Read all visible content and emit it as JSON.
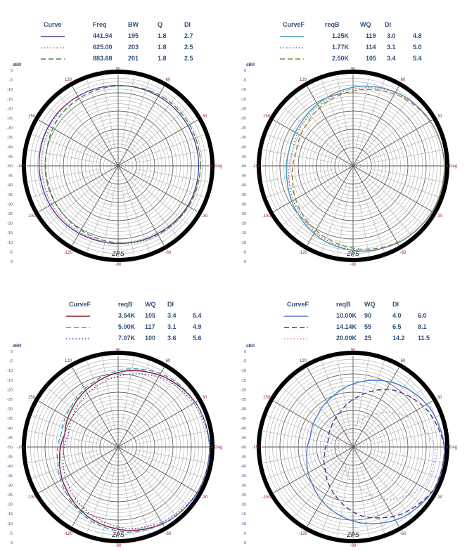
{
  "chart_data": [
    {
      "type": "polar",
      "radial_label": "dBR",
      "radial_ticks": [
        "0",
        "-5",
        "-10",
        "-15",
        "-20",
        "-25",
        "-30",
        "-35",
        "-40",
        "-45",
        "-50",
        "-45",
        "-40",
        "-35",
        "-30",
        "-25",
        "-20",
        "-15",
        "-10",
        "-5",
        "0"
      ],
      "angle_labels": [
        "0 Deg",
        "30",
        "60",
        "90",
        "120",
        "150",
        "-180",
        "-150",
        "-120",
        "-90",
        "-60",
        "-30"
      ],
      "signature": "ZPS",
      "legend_headers": [
        "Curve",
        "Freq",
        "BW",
        "Q",
        "DI"
      ],
      "series": [
        {
          "values": [
            "441.94",
            "195",
            "1.8",
            "2.7"
          ],
          "color": "#4a3a9a",
          "dash": "solid",
          "r": [
            -6,
            -6,
            -6,
            -6,
            -6,
            -6,
            -6.5,
            -7,
            -7,
            -7.5,
            -7.5,
            -7,
            -6,
            -6
          ]
        },
        {
          "values": [
            "625.00",
            "203",
            "1.8",
            "2.5"
          ],
          "color": "#e05a7a",
          "dash": "dot",
          "r": [
            -5,
            -5,
            -5,
            -6,
            -6,
            -6.5,
            -8,
            -8.5,
            -8,
            -8,
            -7,
            -6,
            -5.5,
            -5
          ]
        },
        {
          "values": [
            "883.88",
            "201",
            "1.8",
            "2.5"
          ],
          "color": "#3a8a3a",
          "dash": "dash",
          "r": [
            -5,
            -5,
            -5,
            -6,
            -7,
            -8,
            -10,
            -10.5,
            -10,
            -9,
            -7.5,
            -6.5,
            -5.5,
            -5
          ]
        }
      ]
    },
    {
      "type": "polar",
      "radial_label": "dBR",
      "radial_ticks": [
        "0",
        "-5",
        "-10",
        "-15",
        "-20",
        "-25",
        "-30",
        "-35",
        "-40",
        "-45",
        "-50",
        "-45",
        "-40",
        "-35",
        "-30",
        "-25",
        "-20",
        "-15",
        "-10",
        "-5",
        "0"
      ],
      "angle_labels": [
        "0 Deg",
        "30",
        "60",
        "90",
        "120",
        "150",
        "-180",
        "-150",
        "-120",
        "-90",
        "-60",
        "-30"
      ],
      "signature": "ZPS",
      "legend_headers": [
        "CurveF",
        "reqB",
        "WQ",
        "DI"
      ],
      "series": [
        {
          "values": [
            "1.25K",
            "119",
            "3.0",
            "4.8"
          ],
          "color": "#3a9ab8",
          "dash": "solid",
          "r": [
            0,
            -1,
            -3,
            -6,
            -10,
            -13,
            -14,
            -13,
            -10,
            -6,
            -3,
            -1,
            0,
            0
          ]
        },
        {
          "values": [
            "1.77K",
            "114",
            "3.1",
            "5.0"
          ],
          "color": "#b04ab0",
          "dash": "dot",
          "r": [
            0,
            -1,
            -3,
            -7,
            -11,
            -14,
            -16,
            -14,
            -11,
            -7,
            -3,
            -1,
            0,
            0
          ]
        },
        {
          "values": [
            "2.50K",
            "105",
            "3.4",
            "5.4"
          ],
          "color": "#8a8a2a",
          "dash": "dash",
          "r": [
            0,
            -1,
            -4,
            -8,
            -12,
            -16,
            -18,
            -16,
            -12,
            -8,
            -4,
            -1,
            0,
            0
          ]
        }
      ]
    },
    {
      "type": "polar",
      "radial_label": "dBR",
      "radial_ticks": [
        "0",
        "-5",
        "-10",
        "-15",
        "-20",
        "-25",
        "-30",
        "-35",
        "-40",
        "-45",
        "-50",
        "-45",
        "-40",
        "-35",
        "-30",
        "-25",
        "-20",
        "-15",
        "-10",
        "-5",
        "0"
      ],
      "angle_labels": [
        "0 Deg",
        "30",
        "60",
        "90",
        "120",
        "150",
        "-180",
        "-150",
        "-120",
        "-90",
        "-60",
        "-30"
      ],
      "signature": "ZPS",
      "legend_headers": [
        "CurveF",
        "reqB",
        "WQ",
        "DI"
      ],
      "series": [
        {
          "values": [
            "3.54K",
            "105",
            "3.4",
            "5.4"
          ],
          "color": "#8a1a2a",
          "dash": "solid",
          "r": [
            0,
            -1,
            -4,
            -8,
            -13,
            -17,
            -20,
            -17,
            -13,
            -8,
            -4,
            -1,
            0,
            0
          ]
        },
        {
          "values": [
            "5.00K",
            "117",
            "3.1",
            "4.9"
          ],
          "color": "#3a9ad8",
          "dash": "dash",
          "r": [
            0,
            -1,
            -3,
            -7,
            -12,
            -16,
            -18,
            -16,
            -12,
            -7,
            -3,
            -1,
            0,
            0
          ]
        },
        {
          "values": [
            "7.07K",
            "100",
            "3.6",
            "5.6"
          ],
          "color": "#4a3aa0",
          "dash": "dot",
          "r": [
            0,
            -2,
            -5,
            -10,
            -15,
            -19,
            -22,
            -19,
            -15,
            -10,
            -5,
            -2,
            0,
            0
          ]
        }
      ]
    },
    {
      "type": "polar",
      "radial_label": "dBR",
      "radial_ticks": [
        "0",
        "-5",
        "-10",
        "-15",
        "-20",
        "-25",
        "-30",
        "-35",
        "-40",
        "-45",
        "-50",
        "-45",
        "-40",
        "-35",
        "-30",
        "-25",
        "-20",
        "-15",
        "-10",
        "-5",
        "0"
      ],
      "angle_labels": [
        "0 Deg",
        "30",
        "60",
        "90",
        "120",
        "150",
        "-180",
        "-150",
        "-120",
        "-90",
        "-60",
        "-30"
      ],
      "signature": "ZPS",
      "legend_headers": [
        "CurveF",
        "reqB",
        "WQ",
        "DI"
      ],
      "series": [
        {
          "values": [
            "10.00K",
            "90",
            "4.0",
            "6.0"
          ],
          "color": "#4a7ac8",
          "dash": "solid",
          "r": [
            0,
            -3,
            -8,
            -14,
            -20,
            -24,
            -26,
            -24,
            -20,
            -14,
            -8,
            -3,
            0,
            0
          ]
        },
        {
          "values": [
            "14.14K",
            "55",
            "6.5",
            "8.1"
          ],
          "color": "#5a2a8a",
          "dash": "dash",
          "r": [
            0,
            -5,
            -12,
            -22,
            -30,
            -34,
            -36,
            -34,
            -30,
            -22,
            -12,
            -5,
            0,
            0
          ]
        },
        {
          "values": [
            "20.00K",
            "25",
            "14.2",
            "11.5"
          ],
          "color": "#c87ac8",
          "dash": "dot",
          "r": [
            -5,
            -15,
            -28,
            -38,
            -42,
            -40,
            -42,
            -40,
            -42,
            -38,
            -28,
            -15,
            -5,
            -5
          ]
        }
      ]
    }
  ]
}
